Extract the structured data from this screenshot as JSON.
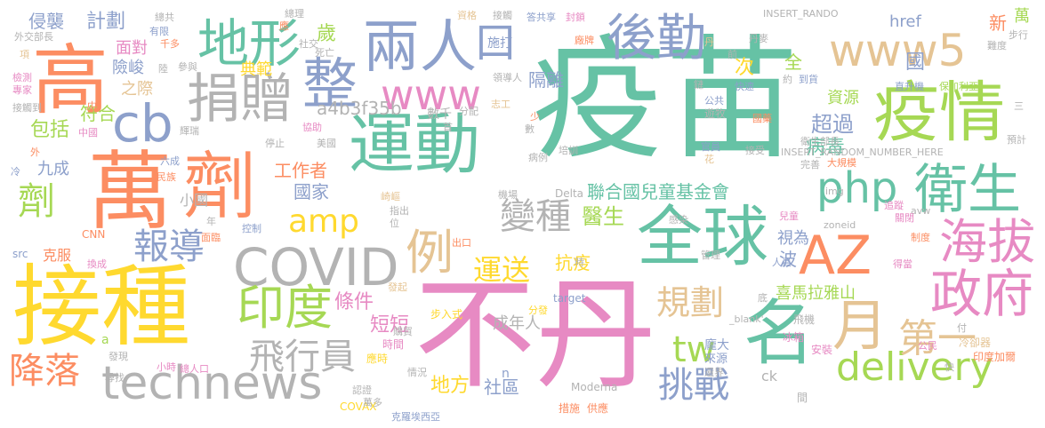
{
  "words": [
    {
      "text": "疫苗",
      "color": "#66c2a5"
    },
    {
      "text": "不丹",
      "color": "#e78ac3"
    },
    {
      "text": "接種",
      "color": "#ffd92f"
    },
    {
      "text": "萬",
      "color": "#fc8d62"
    },
    {
      "text": "劑",
      "color": "#fc8d62"
    },
    {
      "text": "運動",
      "color": "#66c2a5"
    },
    {
      "text": "全球",
      "color": "#66c2a5"
    },
    {
      "text": "疫情",
      "color": "#a6d854"
    },
    {
      "text": "高",
      "color": "#fc8d62"
    },
    {
      "text": "地形",
      "color": "#66c2a5"
    },
    {
      "text": "兩人",
      "color": "#8da0cb"
    },
    {
      "text": "口",
      "color": "#8da0cb"
    },
    {
      "text": "後勤",
      "color": "#8da0cb"
    },
    {
      "text": "www5",
      "color": "#e5c494"
    },
    {
      "text": "捐贈",
      "color": "#b3b3b3"
    },
    {
      "text": "整",
      "color": "#8da0cb"
    },
    {
      "text": "www",
      "color": "#e78ac3"
    },
    {
      "text": "cb",
      "color": "#8da0cb"
    },
    {
      "text": "COVID",
      "color": "#b3b3b3"
    },
    {
      "text": "amp",
      "color": "#ffd92f"
    },
    {
      "text": "php",
      "color": "#66c2a5"
    },
    {
      "text": "衛生",
      "color": "#66c2a5"
    },
    {
      "text": "AZ",
      "color": "#fc8d62"
    },
    {
      "text": "政府",
      "color": "#e78ac3"
    },
    {
      "text": "海拔",
      "color": "#e78ac3"
    },
    {
      "text": "名",
      "color": "#66c2a5"
    },
    {
      "text": "月",
      "color": "#e5c494"
    },
    {
      "text": "印度",
      "color": "#a6d854"
    },
    {
      "text": "例",
      "color": "#e5c494"
    },
    {
      "text": "變種",
      "color": "#b3b3b3"
    },
    {
      "text": "報導",
      "color": "#8da0cb"
    },
    {
      "text": "technews",
      "color": "#b3b3b3"
    },
    {
      "text": "降落",
      "color": "#fc8d62"
    },
    {
      "text": "飛行員",
      "color": "#b3b3b3"
    },
    {
      "text": "規劃",
      "color": "#e5c494"
    },
    {
      "text": "tw",
      "color": "#a6d854"
    },
    {
      "text": "挑戰",
      "color": "#8da0cb"
    },
    {
      "text": "delivery",
      "color": "#a6d854"
    },
    {
      "text": "第一",
      "color": "#e5c494"
    },
    {
      "text": "運送",
      "color": "#ffd92f"
    },
    {
      "text": "劑",
      "color": "#a6d854"
    },
    {
      "text": "聯合國兒童基金會",
      "color": "#66c2a5"
    },
    {
      "text": "醫生",
      "color": "#a6d854"
    },
    {
      "text": "地方",
      "color": "#ffd92f"
    },
    {
      "text": "社區",
      "color": "#8da0cb"
    },
    {
      "text": "喜馬拉雅山",
      "color": "#a6d854"
    },
    {
      "text": "超過",
      "color": "#8da0cb"
    },
    {
      "text": "病毒",
      "color": "#66c2a5"
    },
    {
      "text": "隔離",
      "color": "#8da0cb"
    },
    {
      "text": "次",
      "color": "#ffd92f"
    },
    {
      "text": "全",
      "color": "#a6d854"
    },
    {
      "text": "資源",
      "color": "#a6d854"
    },
    {
      "text": "國",
      "color": "#8da0cb"
    },
    {
      "text": "計劃",
      "color": "#8da0cb"
    },
    {
      "text": "典範",
      "color": "#ffd92f"
    },
    {
      "text": "歲",
      "color": "#a6d854"
    },
    {
      "text": "工作者",
      "color": "#fc8d62"
    },
    {
      "text": "國家",
      "color": "#8da0cb"
    },
    {
      "text": "包括",
      "color": "#a6d854"
    },
    {
      "text": "符合",
      "color": "#a6d854"
    },
    {
      "text": "侵襲",
      "color": "#8da0cb"
    },
    {
      "text": "面對",
      "color": "#e78ac3"
    },
    {
      "text": "險峻",
      "color": "#8da0cb"
    },
    {
      "text": "之際",
      "color": "#e5c494"
    },
    {
      "text": "a4b3f35b",
      "color": "#b3b3b3"
    },
    {
      "text": "條件",
      "color": "#e78ac3"
    },
    {
      "text": "短短",
      "color": "#e78ac3"
    },
    {
      "text": "成年人",
      "color": "#b3b3b3"
    },
    {
      "text": "抗疫",
      "color": "#ffd92f"
    },
    {
      "text": "視為",
      "color": "#8da0cb"
    },
    {
      "text": "波",
      "color": "#8da0cb"
    },
    {
      "text": "href",
      "color": "#8da0cb"
    },
    {
      "text": "新",
      "color": "#fc8d62"
    },
    {
      "text": "萬",
      "color": "#a6d854"
    },
    {
      "text": "施打",
      "color": "#8da0cb"
    },
    {
      "text": "九成",
      "color": "#8da0cb"
    },
    {
      "text": "小國",
      "color": "#b3b3b3"
    },
    {
      "text": "克服",
      "color": "#fc8d62"
    },
    {
      "text": "INSERT_RANDO",
      "color": "#b3b3b3"
    },
    {
      "text": "INSERT_RANDOM_NUMBER_HERE",
      "color": "#b3b3b3"
    },
    {
      "text": "數千",
      "color": "#b3b3b3"
    },
    {
      "text": "Delta",
      "color": "#b3b3b3"
    },
    {
      "text": "Moderna",
      "color": "#b3b3b3"
    },
    {
      "text": "COVAX",
      "color": "#ffd92f"
    },
    {
      "text": "CNN",
      "color": "#fc8d62"
    },
    {
      "text": "src",
      "color": "#8da0cb"
    },
    {
      "text": "target",
      "color": "#8da0cb"
    },
    {
      "text": "_blank'",
      "color": "#b3b3b3"
    },
    {
      "text": "zoneid",
      "color": "#b3b3b3"
    },
    {
      "text": "img",
      "color": "#b3b3b3"
    },
    {
      "text": "avw",
      "color": "#b3b3b3"
    },
    {
      "text": "ck",
      "color": "#b3b3b3"
    },
    {
      "text": "n",
      "color": "#8da0cb"
    },
    {
      "text": "a",
      "color": "#a6d854"
    },
    {
      "text": "間",
      "color": "#b3b3b3"
    },
    {
      "text": "應時",
      "color": "#ffd92f"
    },
    {
      "text": "時間",
      "color": "#e78ac3"
    },
    {
      "text": "購買",
      "color": "#b3b3b3"
    },
    {
      "text": "步入式",
      "color": "#ffd92f"
    },
    {
      "text": "分發",
      "color": "#ffd92f"
    },
    {
      "text": "發起",
      "color": "#e5c494"
    },
    {
      "text": "情況",
      "color": "#b3b3b3"
    },
    {
      "text": "認證",
      "color": "#b3b3b3"
    },
    {
      "text": "萬多",
      "color": "#b3b3b3"
    },
    {
      "text": "克羅埃西亞",
      "color": "#8da0cb"
    },
    {
      "text": "措施",
      "color": "#fc8d62"
    },
    {
      "text": "供應",
      "color": "#fc8d62"
    },
    {
      "text": "龐大",
      "color": "#8da0cb"
    },
    {
      "text": "來源",
      "color": "#8da0cb"
    },
    {
      "text": "還界",
      "color": "#b3b3b3"
    },
    {
      "text": "冰箱",
      "color": "#e78ac3"
    },
    {
      "text": "安裝",
      "color": "#e78ac3"
    },
    {
      "text": "冷卻器",
      "color": "#e5c494"
    },
    {
      "text": "印度加爾",
      "color": "#fc8d62"
    },
    {
      "text": "公民",
      "color": "#e78ac3"
    },
    {
      "text": "飛機",
      "color": "#b3b3b3"
    },
    {
      "text": "人員",
      "color": "#8da0cb"
    },
    {
      "text": "得當",
      "color": "#e78ac3"
    },
    {
      "text": "制度",
      "color": "#fc8d62"
    },
    {
      "text": "管理",
      "color": "#b3b3b3"
    },
    {
      "text": "出口",
      "color": "#fc8d62"
    },
    {
      "text": "時",
      "color": "#b3b3b3"
    },
    {
      "text": "兒童",
      "color": "#e78ac3"
    },
    {
      "text": "追蹤",
      "color": "#e78ac3"
    },
    {
      "text": "關閉",
      "color": "#e78ac3"
    },
    {
      "text": "感染",
      "color": "#b3b3b3"
    },
    {
      "text": "完善",
      "color": "#b3b3b3"
    },
    {
      "text": "大規模",
      "color": "#fc8d62"
    },
    {
      "text": "預計",
      "color": "#b3b3b3"
    },
    {
      "text": "衛生部長",
      "color": "#b3b3b3"
    },
    {
      "text": "接受",
      "color": "#b3b3b3"
    },
    {
      "text": "國藥",
      "color": "#fc8d62"
    },
    {
      "text": "官員",
      "color": "#8da0cb"
    },
    {
      "text": "花",
      "color": "#e5c494"
    },
    {
      "text": "遊牧",
      "color": "#b3b3b3"
    },
    {
      "text": "公共",
      "color": "#8da0cb"
    },
    {
      "text": "到貨",
      "color": "#8da0cb"
    },
    {
      "text": "約",
      "color": "#b3b3b3"
    },
    {
      "text": "快速",
      "color": "#8da0cb"
    },
    {
      "text": "鏈",
      "color": "#b3b3b3"
    },
    {
      "text": "直升機",
      "color": "#8da0cb"
    },
    {
      "text": "保加利亞",
      "color": "#a6d854"
    },
    {
      "text": "步行",
      "color": "#b3b3b3"
    },
    {
      "text": "難度",
      "color": "#b3b3b3"
    },
    {
      "text": "丹麥",
      "color": "#b3b3b3"
    },
    {
      "text": "前",
      "color": "#b3b3b3"
    },
    {
      "text": "丹",
      "color": "#e5c494"
    },
    {
      "text": "封鎖",
      "color": "#e78ac3"
    },
    {
      "text": "答共享",
      "color": "#8da0cb"
    },
    {
      "text": "廠牌",
      "color": "#fc8d62"
    },
    {
      "text": "資格",
      "color": "#e5c494"
    },
    {
      "text": "接觸",
      "color": "#b3b3b3"
    },
    {
      "text": "總理",
      "color": "#b3b3b3"
    },
    {
      "text": "應",
      "color": "#fc8d62"
    },
    {
      "text": "社交",
      "color": "#b3b3b3"
    },
    {
      "text": "死亡",
      "color": "#b3b3b3"
    },
    {
      "text": "總共",
      "color": "#b3b3b3"
    },
    {
      "text": "有限",
      "color": "#8da0cb"
    },
    {
      "text": "千多",
      "color": "#fc8d62"
    },
    {
      "text": "參與",
      "color": "#b3b3b3"
    },
    {
      "text": "陸",
      "color": "#b3b3b3"
    },
    {
      "text": "領導人",
      "color": "#b3b3b3"
    },
    {
      "text": "志工",
      "color": "#e5c494"
    },
    {
      "text": "分配",
      "color": "#b3b3b3"
    },
    {
      "text": "首",
      "color": "#b3b3b3"
    },
    {
      "text": "少",
      "color": "#fc8d62"
    },
    {
      "text": "數",
      "color": "#b3b3b3"
    },
    {
      "text": "培訓",
      "color": "#b3b3b3"
    },
    {
      "text": "病例",
      "color": "#b3b3b3"
    },
    {
      "text": "機場",
      "color": "#b3b3b3"
    },
    {
      "text": "崎嶇",
      "color": "#e5c494"
    },
    {
      "text": "指出",
      "color": "#b3b3b3"
    },
    {
      "text": "位",
      "color": "#b3b3b3"
    },
    {
      "text": "控制",
      "color": "#8da0cb"
    },
    {
      "text": "面臨",
      "color": "#fc8d62"
    },
    {
      "text": "年",
      "color": "#b3b3b3"
    },
    {
      "text": "民族",
      "color": "#fc8d62"
    },
    {
      "text": "六成",
      "color": "#8da0cb"
    },
    {
      "text": "美國",
      "color": "#b3b3b3"
    },
    {
      "text": "停止",
      "color": "#b3b3b3"
    },
    {
      "text": "協助",
      "color": "#e78ac3"
    },
    {
      "text": "輝瑞",
      "color": "#b3b3b3"
    },
    {
      "text": "中",
      "color": "#fc8d62"
    },
    {
      "text": "中國",
      "color": "#e78ac3"
    },
    {
      "text": "外",
      "color": "#fc8d62"
    },
    {
      "text": "冷",
      "color": "#8da0cb"
    },
    {
      "text": "接觸到",
      "color": "#b3b3b3"
    },
    {
      "text": "專家",
      "color": "#e78ac3"
    },
    {
      "text": "檢測",
      "color": "#e78ac3"
    },
    {
      "text": "項",
      "color": "#e5c494"
    },
    {
      "text": "外交部長",
      "color": "#b3b3b3"
    },
    {
      "text": "換成",
      "color": "#e78ac3"
    },
    {
      "text": "發現",
      "color": "#b3b3b3"
    },
    {
      "text": "尋找",
      "color": "#b3b3b3"
    },
    {
      "text": "小時",
      "color": "#e78ac3"
    },
    {
      "text": "總人口",
      "color": "#e78ac3"
    },
    {
      "text": "三",
      "color": "#b3b3b3"
    },
    {
      "text": "快",
      "color": "#b3b3b3"
    },
    {
      "text": "付",
      "color": "#b3b3b3"
    },
    {
      "text": "底",
      "color": "#b3b3b3"
    }
  ]
}
